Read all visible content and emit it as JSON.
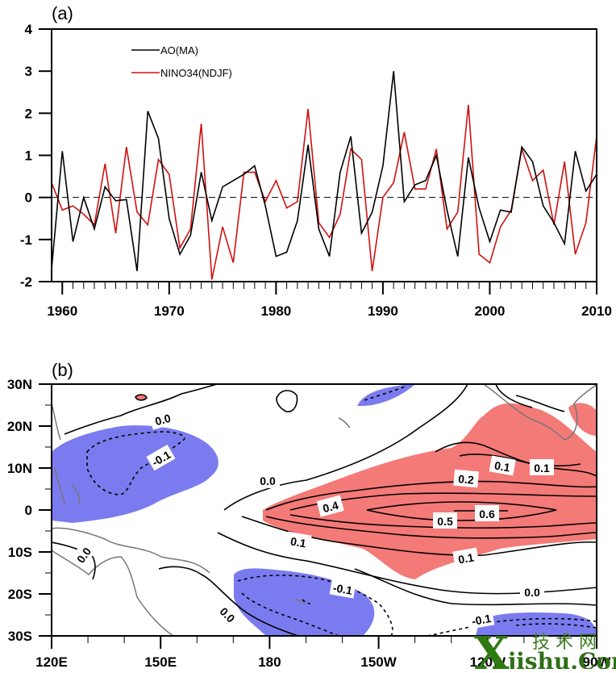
{
  "chart_data": [
    {
      "type": "line",
      "panel_label": "(a)",
      "title": "",
      "xlabel": "",
      "ylabel": "",
      "xlim": [
        1959,
        2010
      ],
      "ylim": [
        -2,
        4
      ],
      "x_ticks": [
        1960,
        1970,
        1980,
        1990,
        2000,
        2010
      ],
      "x_tick_labels": [
        "1960",
        "1970",
        "1980",
        "1990",
        "2000",
        "2010"
      ],
      "y_ticks": [
        -2,
        -1,
        0,
        1,
        2,
        3,
        4
      ],
      "y_tick_labels": [
        "-2",
        "-1",
        "0",
        "1",
        "2",
        "3",
        "4"
      ],
      "reference_line": {
        "y": 0,
        "style": "dashed"
      },
      "legend_position": "top-left",
      "x": [
        1959,
        1960,
        1961,
        1962,
        1963,
        1964,
        1965,
        1966,
        1967,
        1968,
        1969,
        1970,
        1971,
        1972,
        1973,
        1974,
        1975,
        1976,
        1977,
        1978,
        1979,
        1980,
        1981,
        1982,
        1983,
        1984,
        1985,
        1986,
        1987,
        1988,
        1989,
        1990,
        1991,
        1992,
        1993,
        1994,
        1995,
        1996,
        1997,
        1998,
        1999,
        2000,
        2001,
        2002,
        2003,
        2004,
        2005,
        2006,
        2007,
        2008,
        2009,
        2010
      ],
      "series": [
        {
          "name": "AO(MA)",
          "color": "#000000",
          "values": [
            -1.7,
            1.1,
            -1.05,
            0.0,
            -0.75,
            0.25,
            -0.08,
            -0.05,
            -1.75,
            2.05,
            1.4,
            -0.5,
            -1.35,
            -0.9,
            0.6,
            -0.55,
            0.25,
            0.4,
            0.55,
            0.75,
            -0.2,
            -1.4,
            -1.3,
            -0.55,
            1.25,
            -0.75,
            -1.4,
            0.6,
            1.45,
            -0.85,
            -0.35,
            0.75,
            3.0,
            -0.1,
            0.3,
            0.4,
            1.0,
            -0.3,
            -1.4,
            0.95,
            -0.25,
            -1.05,
            -0.3,
            -0.35,
            1.2,
            0.85,
            -0.2,
            -0.6,
            -1.1,
            1.1,
            0.15,
            0.55
          ]
        },
        {
          "name": "NINO34(NDJF)",
          "color": "#d01010",
          "values": [
            0.35,
            -0.3,
            -0.2,
            -0.4,
            -0.65,
            0.8,
            -0.85,
            1.2,
            -0.35,
            -0.65,
            0.9,
            0.55,
            -1.2,
            -0.75,
            1.75,
            -1.95,
            -0.7,
            -1.55,
            0.6,
            0.6,
            -0.1,
            0.4,
            -0.25,
            -0.1,
            2.1,
            -0.6,
            -0.95,
            -0.4,
            1.15,
            0.9,
            -1.75,
            0.0,
            0.35,
            1.55,
            0.2,
            0.2,
            1.15,
            -0.75,
            -0.35,
            2.2,
            -1.35,
            -1.55,
            -0.7,
            -0.3,
            1.15,
            0.4,
            0.65,
            -0.65,
            0.85,
            -1.35,
            -0.6,
            1.45
          ]
        }
      ]
    },
    {
      "type": "heatmap",
      "subtype": "contour-map",
      "panel_label": "(b)",
      "title": "",
      "xlim": [
        "120E",
        "90W"
      ],
      "ylim": [
        "30S",
        "30N"
      ],
      "x_tick_labels": [
        "120E",
        "150E",
        "180",
        "150W",
        "120W",
        "90W"
      ],
      "y_tick_labels": [
        "30N",
        "20N",
        "10N",
        "0",
        "10S",
        "20S",
        "30S"
      ],
      "contour_levels": [
        -0.1,
        0.0,
        0.1,
        0.2,
        0.3,
        0.4,
        0.5,
        0.6
      ],
      "contour_labels": [
        "0.0",
        "-0.1",
        "0.0",
        "0.4",
        "0.1",
        "0.2",
        "0.1",
        "0.1",
        "0.5",
        "0.6",
        "0.1",
        "0.0",
        "-0.1",
        "0.0",
        "-0.1",
        "0.0"
      ],
      "negative_contour_style": "dashed",
      "shading": [
        {
          "meaning": "positive significant",
          "color": "#f47a78"
        },
        {
          "meaning": "negative significant",
          "color": "#7b7bf0"
        }
      ],
      "coastline_color": "#777777"
    }
  ],
  "legend": {
    "items": [
      {
        "label": "AO(MA)",
        "color": "#000000"
      },
      {
        "label": "NINO34(NDJF)",
        "color": "#d01010"
      }
    ]
  },
  "watermark": {
    "letter": "X",
    "chinese": "技 术 网",
    "text": "jishu.Com"
  }
}
